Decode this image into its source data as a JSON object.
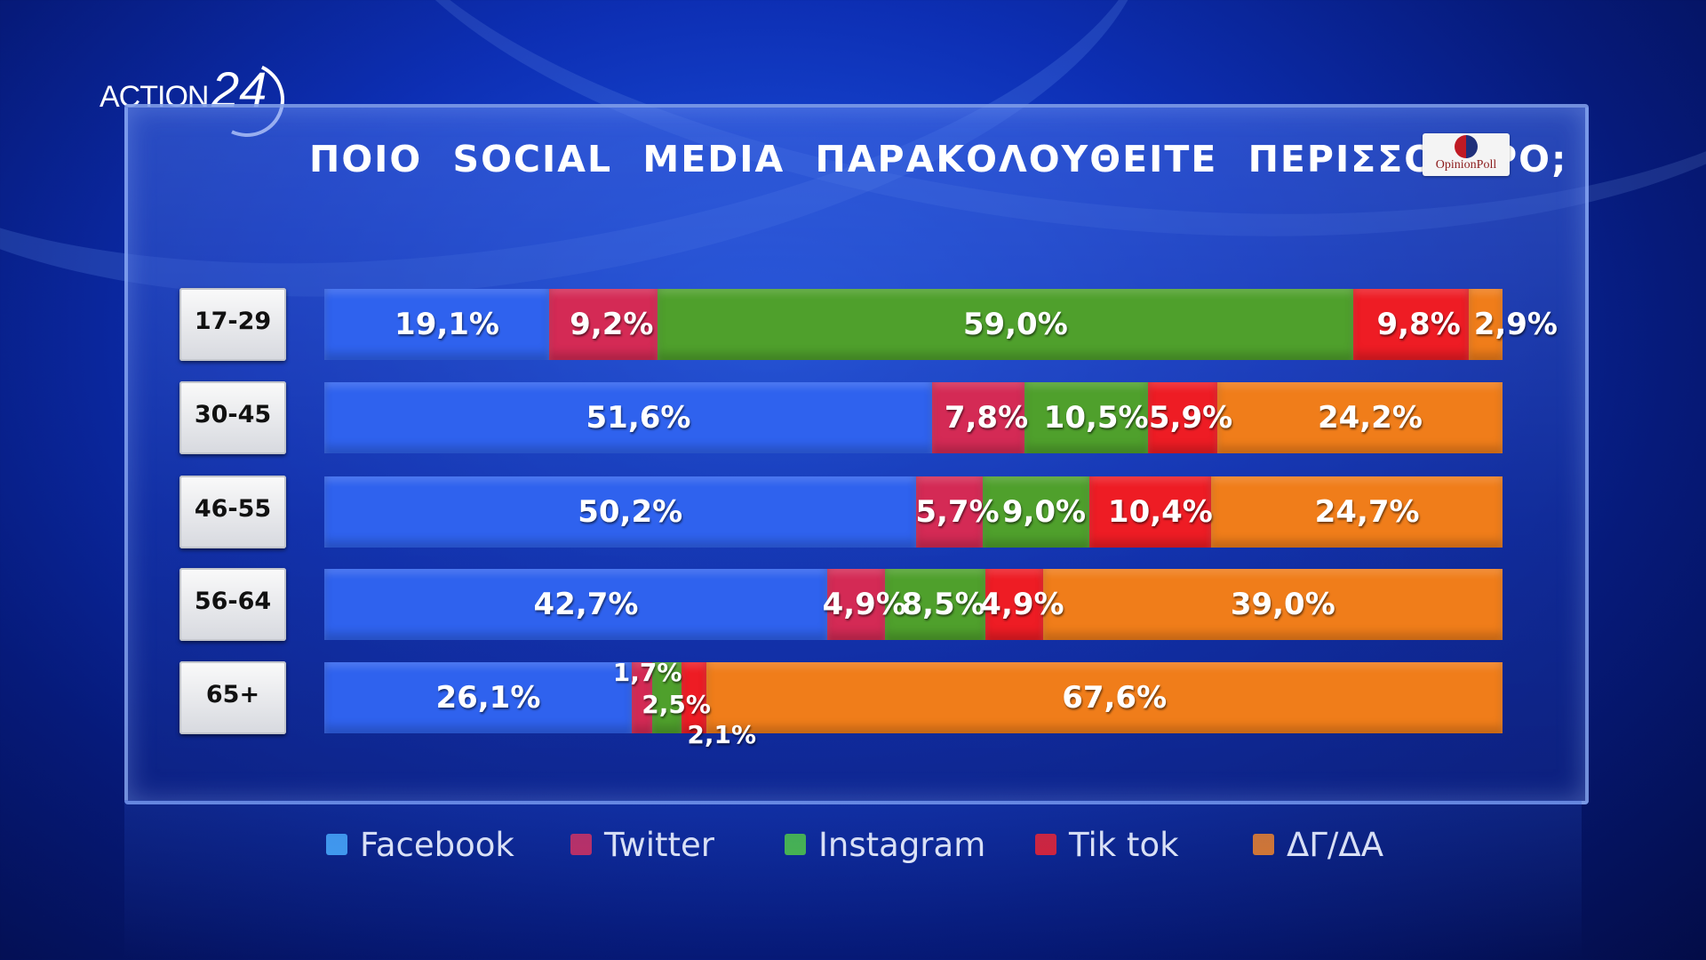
{
  "brand": {
    "logo_text": "ACTION",
    "logo_number": "24",
    "poll_logo": "OpinionPoll"
  },
  "title": "ΠΟΙΟ SOCIAL MEDIA ΠΑΡΑΚΟΛΟΥΘΕΙΤΕ ΠΕΡΙΣΣΟΤΕΡΟ;",
  "colors": {
    "Facebook": "#2f62ee",
    "Twitter": "#d42a55",
    "Instagram": "#4fa02c",
    "Tik tok": "#ee1c24",
    "ΔΓ/ΔΑ": "#f07d1a",
    "legend_Facebook": "#45a6f5",
    "legend_Instagram": "#4cc53c"
  },
  "chart_data": {
    "type": "bar",
    "orientation": "horizontal-stacked",
    "categories": [
      "17-29",
      "30-45",
      "46-55",
      "56-64",
      "65+"
    ],
    "series": [
      {
        "name": "Facebook",
        "values": [
          19.1,
          51.6,
          50.2,
          42.7,
          26.1
        ],
        "labels": [
          "19,1%",
          "51,6%",
          "50,2%",
          "42,7%",
          "26,1%"
        ]
      },
      {
        "name": "Twitter",
        "values": [
          9.2,
          7.8,
          5.7,
          4.9,
          1.7
        ],
        "labels": [
          "9,2%",
          "7,8%",
          "5,7%",
          "4,9%",
          "1,7%"
        ]
      },
      {
        "name": "Instagram",
        "values": [
          59.0,
          10.5,
          9.0,
          8.5,
          2.5
        ],
        "labels": [
          "59,0%",
          "10,5%",
          "9,0%",
          "8,5%",
          "2,5%"
        ]
      },
      {
        "name": "Tik tok",
        "values": [
          9.8,
          5.9,
          10.4,
          4.9,
          2.1
        ],
        "labels": [
          "9,8%",
          "5,9%",
          "10,4%",
          "4,9%",
          "2,1%"
        ]
      },
      {
        "name": "ΔΓ/ΔΑ",
        "values": [
          2.9,
          24.2,
          24.7,
          39.0,
          67.6
        ],
        "labels": [
          "2,9%",
          "24,2%",
          "24,7%",
          "39,0%",
          "67,6%"
        ]
      }
    ],
    "legend_position": "bottom"
  }
}
